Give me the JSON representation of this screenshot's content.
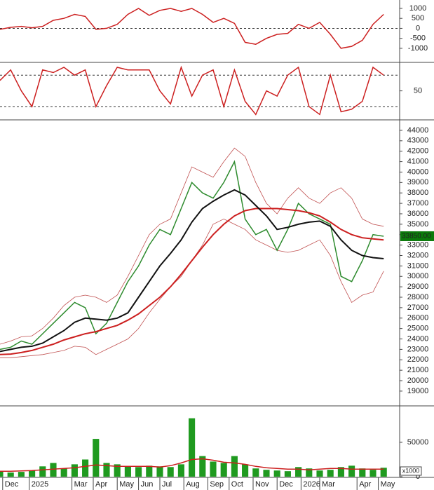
{
  "chart_data": [
    {
      "type": "line",
      "x": [
        0,
        2,
        4,
        6,
        8,
        10,
        12,
        14,
        16,
        18,
        20,
        22,
        24,
        26,
        28,
        30,
        32,
        34,
        36,
        38,
        40,
        42,
        44,
        46,
        48,
        50,
        52,
        54,
        56,
        58,
        60,
        62,
        64,
        66,
        68,
        70,
        72
      ],
      "xlim": [
        0,
        75
      ],
      "ylim": [
        -1670,
        1420
      ],
      "yticks": [
        1000,
        500,
        0,
        -500,
        -1000
      ],
      "ref_lines": [
        0
      ],
      "series": [
        {
          "color": "#cc1f1f",
          "values": [
            -50,
            50,
            100,
            30,
            100,
            400,
            500,
            700,
            600,
            -50,
            0,
            200,
            700,
            1000,
            650,
            900,
            1000,
            850,
            1000,
            700,
            300,
            500,
            250,
            -700,
            -800,
            -500,
            -300,
            -250,
            200,
            0,
            300,
            -300,
            -1000,
            -900,
            -600,
            200,
            700
          ]
        }
      ]
    },
    {
      "type": "line",
      "x": [
        0,
        2,
        4,
        6,
        8,
        10,
        12,
        14,
        16,
        18,
        20,
        22,
        24,
        26,
        28,
        30,
        32,
        34,
        36,
        38,
        40,
        42,
        44,
        46,
        48,
        50,
        52,
        54,
        56,
        58,
        60,
        62,
        64,
        66,
        68,
        70,
        72
      ],
      "xlim": [
        0,
        75
      ],
      "ylim": [
        -4,
        103
      ],
      "yticks": [
        50
      ],
      "ref_lines": [
        20,
        80
      ],
      "series": [
        {
          "color": "#cc1f1f",
          "values": [
            70,
            90,
            50,
            20,
            90,
            85,
            95,
            80,
            90,
            20,
            60,
            95,
            90,
            90,
            90,
            50,
            25,
            95,
            40,
            80,
            90,
            20,
            90,
            30,
            5,
            50,
            40,
            80,
            95,
            20,
            5,
            80,
            10,
            15,
            30,
            95,
            80
          ]
        }
      ]
    },
    {
      "type": "line",
      "x": [
        0,
        2,
        4,
        6,
        8,
        10,
        12,
        14,
        16,
        18,
        20,
        22,
        24,
        26,
        28,
        30,
        32,
        34,
        36,
        38,
        40,
        42,
        44,
        46,
        48,
        50,
        52,
        54,
        56,
        58,
        60,
        62,
        64,
        66,
        68,
        70,
        72
      ],
      "xlim": [
        0,
        75
      ],
      "ylim": [
        17650,
        44870
      ],
      "yticks": [
        19000,
        20000,
        21000,
        22000,
        23000,
        24000,
        25000,
        26000,
        27000,
        28000,
        29000,
        30000,
        31000,
        32000,
        33000,
        34000,
        35000,
        36000,
        37000,
        38000,
        39000,
        40000,
        41000,
        42000,
        43000,
        44000
      ],
      "marker": {
        "value": 33850,
        "label": "33850.00"
      },
      "series": [
        {
          "color": "#c05050",
          "width": 0.8,
          "values": [
            23500,
            23800,
            24200,
            24300,
            25000,
            26000,
            27200,
            28000,
            28200,
            28000,
            27500,
            28200,
            30000,
            32000,
            34000,
            35000,
            35500,
            38000,
            40500,
            40000,
            39500,
            41000,
            42300,
            41500,
            39000,
            37000,
            36000,
            37500,
            38500,
            37500,
            37000,
            38000,
            38500,
            37500,
            35500,
            35000,
            34800
          ]
        },
        {
          "color": "#c05050",
          "width": 0.8,
          "values": [
            22200,
            22200,
            22300,
            22400,
            22500,
            22700,
            22900,
            23300,
            23200,
            22500,
            23000,
            23500,
            24000,
            25000,
            26500,
            27800,
            29000,
            30000,
            31500,
            33000,
            35000,
            35500,
            35000,
            34500,
            33500,
            33000,
            32500,
            32300,
            32500,
            33000,
            33500,
            32000,
            29500,
            27500,
            28200,
            28500,
            30500
          ]
        },
        {
          "color": "#2e8b2e",
          "width": 1.5,
          "values": [
            23000,
            23200,
            23800,
            23500,
            24500,
            25500,
            26500,
            27500,
            27000,
            24500,
            25500,
            27500,
            29500,
            31000,
            33000,
            34500,
            34000,
            36500,
            39000,
            38000,
            37500,
            39000,
            41000,
            35500,
            34000,
            34500,
            32500,
            34500,
            37000,
            36000,
            35500,
            35000,
            30000,
            29500,
            31500,
            34000,
            33850
          ]
        },
        {
          "color": "#cc1f1f",
          "width": 2,
          "values": [
            22500,
            22550,
            22700,
            22900,
            23200,
            23500,
            23900,
            24200,
            24500,
            24700,
            25000,
            25300,
            25800,
            26400,
            27200,
            28000,
            29000,
            30200,
            31500,
            32800,
            34000,
            35000,
            35800,
            36300,
            36500,
            36500,
            36500,
            36400,
            36300,
            36100,
            35800,
            35200,
            34500,
            34000,
            33700,
            33600,
            33500
          ]
        },
        {
          "color": "#111111",
          "width": 2,
          "values": [
            22800,
            23000,
            23200,
            23300,
            23600,
            24200,
            24800,
            25600,
            26000,
            25900,
            25800,
            26000,
            26500,
            28000,
            29500,
            31000,
            32200,
            33500,
            35200,
            36500,
            37200,
            37800,
            38300,
            37800,
            36800,
            35800,
            34500,
            34700,
            35000,
            35200,
            35300,
            34800,
            33500,
            32500,
            32000,
            31800,
            31700
          ]
        }
      ]
    },
    {
      "type": "bar",
      "x": [
        0,
        2,
        4,
        6,
        8,
        10,
        12,
        14,
        16,
        18,
        20,
        22,
        24,
        26,
        28,
        30,
        32,
        34,
        36,
        38,
        40,
        42,
        44,
        46,
        48,
        50,
        52,
        54,
        56,
        58,
        60,
        62,
        64,
        66,
        68,
        70,
        72
      ],
      "xlim": [
        0,
        75
      ],
      "ylim": [
        0,
        102000
      ],
      "yticks": [
        50000,
        0
      ],
      "unit_label": "x1000",
      "xticks": [
        {
          "value": 0.5,
          "label": "Dec"
        },
        {
          "value": 5.5,
          "label": "2025"
        },
        {
          "value": 13.5,
          "label": "Mar"
        },
        {
          "value": 17.5,
          "label": "Apr"
        },
        {
          "value": 22,
          "label": "May"
        },
        {
          "value": 26,
          "label": "Jun"
        },
        {
          "value": 30,
          "label": "Jul"
        },
        {
          "value": 34.5,
          "label": "Aug"
        },
        {
          "value": 39,
          "label": "Sep"
        },
        {
          "value": 43,
          "label": "Oct"
        },
        {
          "value": 47.5,
          "label": "Nov"
        },
        {
          "value": 52,
          "label": "Dec"
        },
        {
          "value": 56.5,
          "label": "2026"
        },
        {
          "value": 60,
          "label": "Mar"
        },
        {
          "value": 67,
          "label": "Apr"
        },
        {
          "value": 71,
          "label": "May"
        }
      ],
      "series": [
        {
          "type": "bar",
          "color": "#1f9a1f",
          "values": [
            8000,
            6000,
            7000,
            9000,
            15000,
            20000,
            12000,
            18000,
            25000,
            55000,
            20000,
            18000,
            15000,
            14000,
            16000,
            15000,
            14000,
            18000,
            85000,
            30000,
            22000,
            20000,
            30000,
            18000,
            12000,
            10000,
            9000,
            8000,
            14000,
            12000,
            9000,
            10000,
            14000,
            16000,
            12000,
            10000,
            13000
          ]
        },
        {
          "type": "line",
          "color": "#cc1f1f",
          "values": [
            8000,
            8000,
            8500,
            9000,
            10000,
            11000,
            12000,
            13000,
            15000,
            17000,
            16000,
            15000,
            15000,
            15000,
            15000,
            14000,
            16000,
            20000,
            25000,
            26000,
            24000,
            21000,
            20000,
            18000,
            15000,
            13000,
            12000,
            11000,
            11000,
            10000,
            11000,
            12000,
            12000,
            11000,
            11000,
            11000,
            11000
          ]
        }
      ]
    }
  ]
}
